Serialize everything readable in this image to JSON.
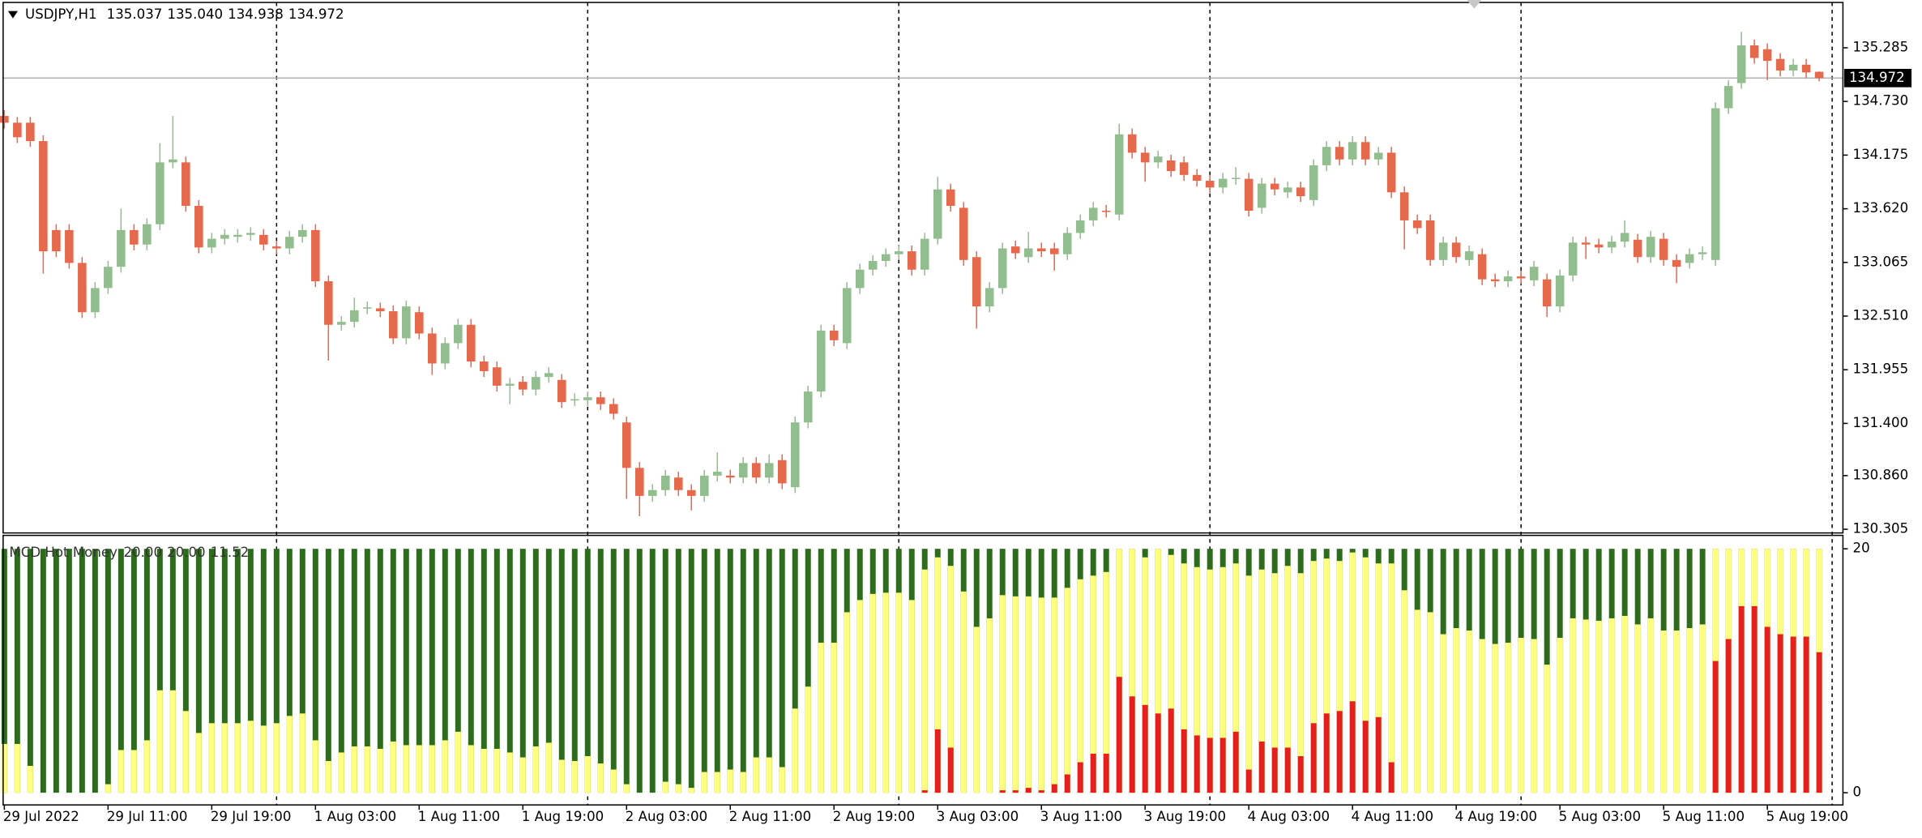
{
  "chart_data": [
    {
      "type": "candlestick",
      "title": "USDJPY,H1",
      "last_high_label": "135.040",
      "up_color": "#92bd8e",
      "down_color": "#e5694c",
      "price_line_color": "#b4b4b4",
      "categories": [
        "29 Jul 2022",
        null,
        null,
        null,
        null,
        null,
        null,
        null,
        "29 Jul 11:00",
        null,
        null,
        null,
        null,
        null,
        null,
        null,
        "29 Jul 19:00",
        null,
        null,
        null,
        null,
        null,
        null,
        null,
        "1 Aug 03:00",
        null,
        null,
        null,
        null,
        null,
        null,
        null,
        "1 Aug 11:00",
        null,
        null,
        null,
        null,
        null,
        null,
        null,
        "1 Aug 19:00",
        null,
        null,
        null,
        null,
        null,
        null,
        null,
        "2 Aug 03:00",
        null,
        null,
        null,
        null,
        null,
        null,
        null,
        "2 Aug 11:00",
        null,
        null,
        null,
        null,
        null,
        null,
        null,
        "2 Aug 19:00",
        null,
        null,
        null,
        null,
        null,
        null,
        null,
        "3 Aug 03:00",
        null,
        null,
        null,
        null,
        null,
        null,
        null,
        "3 Aug 11:00",
        null,
        null,
        null,
        null,
        null,
        null,
        null,
        "3 Aug 19:00",
        null,
        null,
        null,
        null,
        null,
        null,
        null,
        "4 Aug 03:00",
        null,
        null,
        null,
        null,
        null,
        null,
        null,
        "4 Aug 11:00",
        null,
        null,
        null,
        null,
        null,
        null,
        null,
        "4 Aug 19:00",
        null,
        null,
        null,
        null,
        null,
        null,
        null,
        "5 Aug 03:00",
        null,
        null,
        null,
        null,
        null,
        null,
        null,
        "5 Aug 11:00",
        null,
        null,
        null,
        null,
        null,
        null,
        null,
        "5 Aug 19:00",
        null,
        null,
        null,
        null
      ],
      "open": [
        134.58,
        134.51,
        134.51,
        134.32,
        133.4,
        133.4,
        133.06,
        132.55,
        132.8,
        133.02,
        133.4,
        133.25,
        133.46,
        134.1,
        134.1,
        133.65,
        133.22,
        133.31,
        133.33,
        133.35,
        133.35,
        133.23,
        133.21,
        133.33,
        133.4,
        132.87,
        132.42,
        132.45,
        132.59,
        132.59,
        132.56,
        132.28,
        132.55,
        132.33,
        132.02,
        132.23,
        132.42,
        132.04,
        131.98,
        131.79,
        131.83,
        131.75,
        131.88,
        131.85,
        131.64,
        131.64,
        131.67,
        131.6,
        131.41,
        130.94,
        130.65,
        130.71,
        130.84,
        130.71,
        130.65,
        130.86,
        130.86,
        130.84,
        130.99,
        130.84,
        131.02,
        130.74,
        131.41,
        131.73,
        132.36,
        132.23,
        132.8,
        132.99,
        133.08,
        133.15,
        133.18,
        132.99,
        133.31,
        133.82,
        133.63,
        133.12,
        132.61,
        132.8,
        133.23,
        133.12,
        133.21,
        133.21,
        133.15,
        133.37,
        133.5,
        133.6,
        133.56,
        134.39,
        134.2,
        134.1,
        134.12,
        134.1,
        133.97,
        133.91,
        133.84,
        133.93,
        133.93,
        133.63,
        133.88,
        133.79,
        133.84,
        133.71,
        134.07,
        134.26,
        134.13,
        134.31,
        134.13,
        134.2,
        133.79,
        133.5,
        133.5,
        133.09,
        133.27,
        133.09,
        133.15,
        132.89,
        132.87,
        132.92,
        132.88,
        132.89,
        132.61,
        132.93,
        133.27,
        133.25,
        133.22,
        133.28,
        133.3,
        133.12,
        133.31,
        133.09,
        133.06,
        133.15,
        133.09,
        134.66,
        134.92,
        135.31,
        135.27,
        135.17,
        135.05,
        135.11,
        135.037
      ],
      "high": [
        134.64,
        134.57,
        134.57,
        134.38,
        133.46,
        133.46,
        133.12,
        132.86,
        133.08,
        133.62,
        133.46,
        133.52,
        134.3,
        134.58,
        134.16,
        133.71,
        133.37,
        133.41,
        133.41,
        133.43,
        133.41,
        133.29,
        133.39,
        133.46,
        133.46,
        132.93,
        132.51,
        132.7,
        132.66,
        132.65,
        132.62,
        132.67,
        132.61,
        132.39,
        132.29,
        132.48,
        132.48,
        132.1,
        132.04,
        131.87,
        131.89,
        131.94,
        131.98,
        131.91,
        131.71,
        131.73,
        131.73,
        131.66,
        131.47,
        131.0,
        130.77,
        130.92,
        130.9,
        130.77,
        130.92,
        131.1,
        130.92,
        131.05,
        131.05,
        131.08,
        131.08,
        131.47,
        131.79,
        132.42,
        132.42,
        132.86,
        133.05,
        133.14,
        133.21,
        133.24,
        133.24,
        133.37,
        133.95,
        133.88,
        133.69,
        133.18,
        132.86,
        133.27,
        133.29,
        133.38,
        133.27,
        133.27,
        133.43,
        133.56,
        133.69,
        133.66,
        134.5,
        134.45,
        134.26,
        134.22,
        134.18,
        134.16,
        134.03,
        133.97,
        133.99,
        134.05,
        133.99,
        133.94,
        133.94,
        133.9,
        133.9,
        134.13,
        134.32,
        134.32,
        134.37,
        134.37,
        134.26,
        134.26,
        133.85,
        133.56,
        133.56,
        133.33,
        133.33,
        133.24,
        133.21,
        132.95,
        132.98,
        132.98,
        133.08,
        132.95,
        132.99,
        133.33,
        133.33,
        133.31,
        133.34,
        133.5,
        133.36,
        133.39,
        133.37,
        133.15,
        133.21,
        133.23,
        134.72,
        134.95,
        135.45,
        135.37,
        135.33,
        135.23,
        135.17,
        135.17,
        135.04
      ],
      "low": [
        134.45,
        134.3,
        134.26,
        132.95,
        133.12,
        133.0,
        132.49,
        132.49,
        132.74,
        132.96,
        133.19,
        133.19,
        133.4,
        134.04,
        133.59,
        133.16,
        133.16,
        133.25,
        133.27,
        133.29,
        133.19,
        133.15,
        133.15,
        133.27,
        132.81,
        132.05,
        132.36,
        132.39,
        132.53,
        132.5,
        132.22,
        132.22,
        132.27,
        131.9,
        131.96,
        132.17,
        131.98,
        131.88,
        131.73,
        131.6,
        131.69,
        131.69,
        131.82,
        131.56,
        131.58,
        131.58,
        131.54,
        131.44,
        130.62,
        130.44,
        130.59,
        130.65,
        130.65,
        130.5,
        130.59,
        130.8,
        130.78,
        130.78,
        130.78,
        130.78,
        130.72,
        130.68,
        131.35,
        131.67,
        132.2,
        132.17,
        132.74,
        132.93,
        133.02,
        133.09,
        132.93,
        132.93,
        133.25,
        133.59,
        133.03,
        132.38,
        132.55,
        132.74,
        133.1,
        133.06,
        133.12,
        132.98,
        133.09,
        133.31,
        133.44,
        133.53,
        133.5,
        134.14,
        133.9,
        134.04,
        133.95,
        133.91,
        133.85,
        133.78,
        133.78,
        133.87,
        133.54,
        133.57,
        133.76,
        133.73,
        133.69,
        133.65,
        134.01,
        134.07,
        134.07,
        134.07,
        134.07,
        133.73,
        133.2,
        133.36,
        133.03,
        133.03,
        133.06,
        133.03,
        132.83,
        132.81,
        132.81,
        132.84,
        132.82,
        132.5,
        132.55,
        132.87,
        133.1,
        133.16,
        133.16,
        133.22,
        133.06,
        133.06,
        133.03,
        132.85,
        133.0,
        133.09,
        133.03,
        134.6,
        134.86,
        135.12,
        134.95,
        134.99,
        134.99,
        134.97,
        134.938
      ],
      "close": [
        134.51,
        134.36,
        134.32,
        133.18,
        133.18,
        133.06,
        132.55,
        132.8,
        133.02,
        133.4,
        133.25,
        133.46,
        134.1,
        134.13,
        133.65,
        133.22,
        133.31,
        133.35,
        133.35,
        133.37,
        133.25,
        133.21,
        133.33,
        133.4,
        132.87,
        132.42,
        132.45,
        132.57,
        132.6,
        132.56,
        132.28,
        132.61,
        132.33,
        132.02,
        132.23,
        132.42,
        132.04,
        131.94,
        131.79,
        131.81,
        131.75,
        131.88,
        131.92,
        131.62,
        131.65,
        131.67,
        131.6,
        131.5,
        130.94,
        130.65,
        130.71,
        130.86,
        130.71,
        130.65,
        130.86,
        130.9,
        130.84,
        130.99,
        130.84,
        130.99,
        130.78,
        131.41,
        131.73,
        132.36,
        132.26,
        132.8,
        132.99,
        133.08,
        133.15,
        133.18,
        132.99,
        133.31,
        133.82,
        133.65,
        133.09,
        132.61,
        132.8,
        133.21,
        133.16,
        133.21,
        133.18,
        133.15,
        133.37,
        133.5,
        133.63,
        133.59,
        134.39,
        134.2,
        134.1,
        134.16,
        134.01,
        133.97,
        133.91,
        133.84,
        133.93,
        133.94,
        133.6,
        133.88,
        133.82,
        133.84,
        133.75,
        134.07,
        134.26,
        134.13,
        134.31,
        134.13,
        134.2,
        133.79,
        133.5,
        133.42,
        133.09,
        133.27,
        133.12,
        133.18,
        132.89,
        132.87,
        132.92,
        132.9,
        133.02,
        132.61,
        132.93,
        133.27,
        133.25,
        133.22,
        133.28,
        133.37,
        133.12,
        133.33,
        133.09,
        133.02,
        133.15,
        133.17,
        134.66,
        134.89,
        135.31,
        135.18,
        135.15,
        135.05,
        135.11,
        135.03,
        134.972
      ],
      "ylim": [
        130.267,
        135.754
      ],
      "yticks": [
        135.285,
        {
          "value": 134.73,
          "label": "134.730"
        },
        134.175,
        {
          "value": 133.62,
          "label": "133.620"
        },
        133.065,
        {
          "value": 132.51,
          "label": "132.510"
        },
        131.955,
        {
          "value": 131.4,
          "label": "131.400"
        },
        {
          "value": 130.86,
          "label": "130.860"
        },
        130.305
      ]
    },
    {
      "type": "bar",
      "title": "MCD Hot Money",
      "ylim": [
        -1.0,
        21.1
      ],
      "yticks": [
        20,
        0
      ],
      "series": [
        {
          "color": "#2e6b1f",
          "last_value_label": "20.00",
          "values": [
            20,
            20,
            20,
            20,
            20,
            20,
            20,
            20,
            20,
            20,
            20,
            20,
            20,
            20,
            20,
            20,
            20,
            20,
            20,
            20,
            20,
            20,
            20,
            20,
            20,
            20,
            20,
            20,
            20,
            20,
            20,
            20,
            20,
            20,
            20,
            20,
            20,
            20,
            20,
            20,
            20,
            20,
            20,
            20,
            20,
            20,
            20,
            20,
            20,
            20,
            20,
            20,
            20,
            20,
            20,
            20,
            20,
            20,
            20,
            20,
            20,
            20,
            20,
            20,
            20,
            20,
            20,
            20,
            20,
            20,
            20,
            20,
            20,
            20,
            20,
            20,
            20,
            20,
            20,
            20,
            20,
            20,
            20,
            20,
            20,
            20,
            20,
            20,
            20,
            20,
            20,
            20,
            20,
            20,
            20,
            20,
            20,
            20,
            20,
            20,
            20,
            20,
            20,
            20,
            20,
            20,
            20,
            20,
            20,
            20,
            20,
            20,
            20,
            20,
            20,
            20,
            20,
            20,
            20,
            20,
            20,
            20,
            20,
            20,
            20,
            20,
            20,
            20,
            20,
            20,
            20,
            20,
            20,
            20,
            20,
            20,
            20,
            20,
            20,
            20,
            20
          ]
        },
        {
          "color": "#ffff80",
          "last_value_label": "20.00",
          "values": [
            4.0,
            4.0,
            2.2,
            0,
            0,
            0,
            0,
            0,
            0.7,
            3.5,
            3.5,
            4.3,
            8.4,
            8.4,
            6.7,
            4.9,
            5.7,
            5.7,
            5.7,
            5.9,
            5.5,
            5.7,
            6.3,
            6.5,
            4.3,
            2.6,
            3.3,
            3.8,
            3.8,
            3.6,
            4.2,
            3.9,
            3.9,
            3.9,
            4.3,
            5.0,
            3.9,
            3.6,
            3.6,
            3.3,
            2.9,
            3.8,
            4.1,
            2.7,
            2.6,
            3.0,
            2.4,
            1.9,
            0.7,
            0,
            0,
            0.9,
            0.7,
            0.4,
            1.7,
            1.7,
            1.9,
            1.7,
            2.9,
            2.9,
            2.1,
            6.9,
            8.7,
            12.3,
            12.3,
            14.8,
            15.8,
            16.3,
            16.4,
            16.4,
            15.8,
            18.3,
            19.3,
            18.6,
            16.5,
            13.6,
            14.3,
            16.2,
            16.1,
            16.1,
            16.0,
            16.0,
            16.8,
            17.5,
            17.8,
            18.1,
            20,
            20,
            19.3,
            20,
            19.5,
            18.8,
            18.5,
            18.3,
            18.5,
            18.8,
            17.8,
            18.3,
            18.0,
            18.6,
            18.0,
            19.0,
            19.2,
            19.0,
            19.7,
            19.3,
            18.8,
            18.8,
            16.6,
            15.0,
            14.8,
            13.0,
            13.5,
            13.3,
            12.6,
            12.2,
            12.3,
            12.7,
            12.6,
            10.5,
            12.7,
            14.3,
            14.2,
            14.1,
            14.3,
            14.5,
            13.8,
            14.3,
            13.3,
            13.3,
            13.5,
            13.8,
            20,
            20,
            20,
            20,
            20,
            20,
            20,
            20,
            20
          ]
        },
        {
          "color": "#e3201c",
          "last_value_label": "11.52",
          "values": [
            0,
            0,
            0,
            0,
            0,
            0,
            0,
            0,
            0,
            0,
            0,
            0,
            0,
            0,
            0,
            0,
            0,
            0,
            0,
            0,
            0,
            0,
            0,
            0,
            0,
            0,
            0,
            0,
            0,
            0,
            0,
            0,
            0,
            0,
            0,
            0,
            0,
            0,
            0,
            0,
            0,
            0,
            0,
            0,
            0,
            0,
            0,
            0,
            0,
            0,
            0,
            0,
            0,
            0,
            0,
            0,
            0,
            0,
            0,
            0,
            0,
            0,
            0,
            0,
            0,
            0,
            0,
            0,
            0,
            0,
            0,
            0.2,
            5.2,
            3.7,
            0,
            0,
            0,
            0.2,
            0.2,
            0.4,
            0.2,
            0.7,
            1.5,
            2.5,
            3.2,
            3.2,
            9.5,
            7.9,
            7.2,
            6.5,
            6.9,
            5.2,
            4.7,
            4.5,
            4.5,
            5.0,
            1.9,
            4.2,
            3.7,
            3.7,
            3.0,
            5.7,
            6.5,
            6.7,
            7.5,
            5.9,
            6.2,
            2.5,
            0,
            0,
            0,
            0,
            0,
            0,
            0,
            0,
            0,
            0,
            0,
            0,
            0,
            0,
            0,
            0,
            0,
            0,
            0,
            0,
            0,
            0,
            0,
            0,
            10.8,
            12.6,
            15.3,
            15.3,
            13.6,
            13.0,
            12.8,
            12.8,
            11.52
          ]
        }
      ]
    }
  ]
}
